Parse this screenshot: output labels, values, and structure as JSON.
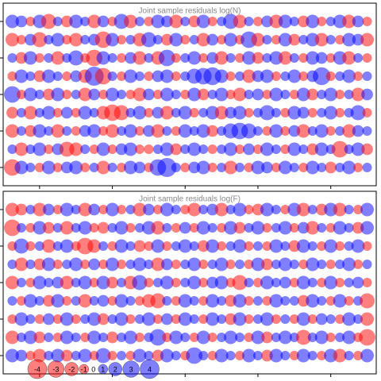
{
  "chart_data": [
    {
      "type": "bubble-grid",
      "title": "Joint sample residuals log(N)",
      "x": [
        1,
        2,
        3,
        4,
        5,
        6,
        7,
        8,
        9,
        10,
        11,
        12,
        13,
        14,
        15,
        16,
        17,
        18,
        19,
        20,
        21,
        22,
        23,
        24,
        25,
        26,
        27,
        28,
        29,
        30,
        31,
        32,
        33,
        34,
        35,
        36,
        37,
        38,
        39,
        40
      ],
      "y": [
        9,
        8,
        7,
        6,
        5,
        4,
        3,
        2,
        1
      ],
      "xlim": [
        0,
        41
      ],
      "ylim": [
        0,
        10
      ],
      "xticks": [
        4,
        12,
        20,
        28,
        36
      ],
      "yticks": [
        1,
        3,
        5,
        7,
        9
      ],
      "positive_color": "#0000ff",
      "negative_color": "#ff0000",
      "values": [
        [
          2,
          1.5,
          -1,
          2,
          -2.5,
          1,
          -1.5,
          2,
          1,
          -2,
          1.5,
          -1,
          2.5,
          -2,
          1,
          -1,
          2,
          1.5,
          -2,
          1,
          -1.5,
          2,
          -1,
          1,
          2.5,
          -2,
          1,
          -1,
          1.5,
          -2,
          2,
          1,
          -1.5,
          2,
          -1,
          1,
          2,
          -2,
          1.5,
          -1
        ],
        [
          -2,
          -1,
          1.5,
          -2.5,
          1,
          2,
          -1,
          -2,
          1,
          1.5,
          -3,
          2,
          -1,
          1,
          -2,
          2.5,
          1,
          -1.5,
          2,
          -1,
          1,
          -2,
          1.5,
          -1,
          2,
          -1,
          3,
          -2,
          1,
          -1,
          2,
          -1.5,
          1,
          2,
          -2,
          1,
          -1,
          2,
          1.5,
          -2
        ],
        [
          1,
          -1.5,
          2,
          -1,
          1,
          -2,
          1,
          2.5,
          -1,
          -3,
          2,
          1,
          -1,
          1.5,
          -2,
          1,
          -2,
          3,
          -1,
          1,
          2,
          -1,
          1.5,
          -2,
          1,
          -1,
          2,
          -1.5,
          1,
          2,
          -2,
          1,
          -1,
          2,
          1.5,
          -1,
          2,
          -2,
          1,
          -1
        ],
        [
          -1,
          2,
          1,
          -1.5,
          2,
          1,
          -1,
          1.5,
          -2,
          4,
          -3,
          1,
          -1,
          2,
          1,
          -1,
          1.5,
          2,
          -1,
          1,
          2.5,
          3,
          3.5,
          2,
          -1,
          1,
          -2,
          1.5,
          2,
          -1,
          1,
          2,
          -1,
          1.5,
          3.5,
          -1,
          1,
          2,
          -1,
          1
        ],
        [
          3,
          -1,
          2,
          1,
          -1.5,
          2,
          -1,
          1,
          -2,
          1.5,
          -1,
          2,
          1,
          -1,
          -2,
          1.5,
          -1,
          2,
          1,
          -1,
          2,
          -1.5,
          1,
          2,
          -1,
          -2,
          1,
          1.5,
          -1,
          2,
          1,
          -1,
          2,
          -1.5,
          1,
          2,
          -1,
          1,
          -2,
          1.5
        ],
        [
          -1.5,
          1,
          -2,
          1,
          2,
          -1,
          1.5,
          -1,
          2,
          1,
          -2,
          -3,
          -2.5,
          1,
          2,
          -1,
          1.5,
          -2,
          1,
          2,
          -1,
          1,
          2,
          -2,
          1.5,
          2,
          -1,
          1,
          2.5,
          1,
          -1,
          2,
          1.5,
          -1,
          1,
          2,
          -1,
          1,
          2.5,
          -1
        ],
        [
          -2,
          1,
          -1.5,
          2,
          1,
          -2,
          1,
          -1,
          1.5,
          2,
          -1,
          -2,
          1,
          2,
          -1,
          1.5,
          -2,
          1,
          -1,
          2,
          1,
          2,
          -1.5,
          1,
          2.5,
          3,
          2.5,
          1,
          -1,
          2,
          -1,
          1.5,
          -2,
          1,
          2,
          -1,
          1,
          -2,
          1.5,
          1
        ],
        [
          1,
          -2,
          1,
          2,
          -1,
          1.5,
          -2.5,
          -2,
          1,
          -1,
          2,
          -1,
          1.5,
          2,
          -1,
          -1,
          1,
          2,
          -1.5,
          1,
          2,
          1,
          -1,
          1,
          2,
          -1,
          1.5,
          -1,
          2,
          1,
          -1,
          2,
          1,
          -1.5,
          2,
          1,
          -3,
          1,
          2,
          -1.5
        ],
        [
          -3,
          2,
          1,
          -1,
          2,
          -1,
          1.5,
          2,
          -1,
          1,
          -2,
          1,
          -1,
          2,
          1.5,
          -1,
          3,
          4,
          1,
          -1,
          1.5,
          2,
          -1,
          1,
          -2,
          1,
          -1,
          2,
          1.5,
          -1,
          2,
          1,
          -1,
          2,
          1,
          -1.5,
          1,
          2,
          -1,
          1
        ]
      ]
    },
    {
      "type": "bubble-grid",
      "title": "Joint sample residuals log(F)",
      "x": [
        1,
        2,
        3,
        4,
        5,
        6,
        7,
        8,
        9,
        10,
        11,
        12,
        13,
        14,
        15,
        16,
        17,
        18,
        19,
        20,
        21,
        22,
        23,
        24,
        25,
        26,
        27,
        28,
        29,
        30,
        31,
        32,
        33,
        34,
        35,
        36,
        37,
        38,
        39,
        40
      ],
      "y": [
        9,
        8,
        7,
        6,
        5,
        4,
        3,
        2,
        1
      ],
      "xlim": [
        0,
        41
      ],
      "ylim": [
        0,
        10
      ],
      "xticks": [
        4,
        12,
        20,
        28,
        36
      ],
      "yticks": [
        1,
        3,
        5,
        7,
        9
      ],
      "positive_color": "#0000ff",
      "negative_color": "#ff0000",
      "legend": [
        -4,
        -3,
        -2,
        -1,
        0,
        1,
        2,
        3,
        4
      ],
      "values": [
        [
          -2,
          -1.5,
          1,
          -2,
          1.5,
          -1,
          2,
          1,
          -2,
          1.5,
          -1,
          2,
          -1,
          1,
          -2,
          1.5,
          -1,
          2,
          1,
          -1,
          -2,
          1,
          1.5,
          -2,
          1,
          2,
          -1,
          -1.5,
          2,
          1,
          -1,
          2,
          -2,
          1,
          -1.5,
          2,
          -2,
          1,
          -1,
          2
        ],
        [
          -3,
          1,
          -1,
          2,
          -1.5,
          1,
          -2,
          1,
          2,
          -1,
          -1.5,
          1,
          2,
          -1,
          1,
          2,
          -2,
          1,
          -1,
          1.5,
          -1,
          2,
          1,
          -1,
          2,
          -1.5,
          1,
          2,
          -1,
          1,
          2,
          -1,
          1.5,
          -2,
          1,
          -1,
          2,
          1,
          -1.5,
          2
        ],
        [
          -1,
          2.5,
          -1,
          1,
          -2,
          1,
          2,
          -1,
          -3,
          -2,
          1,
          -1,
          2,
          1,
          -1.5,
          -1,
          2,
          -1,
          1,
          2,
          1,
          -1.5,
          2,
          -1,
          1,
          2,
          -1,
          1,
          -1,
          2,
          1,
          -1.5,
          2,
          1,
          -1,
          2,
          -1,
          1,
          2,
          -1
        ],
        [
          1,
          -2,
          1,
          -1.5,
          2,
          -1,
          1,
          2,
          -1,
          1.5,
          -1,
          2,
          -1,
          1,
          2,
          1,
          -2,
          1.5,
          -1,
          1,
          2,
          -1,
          1,
          2,
          -1,
          1,
          -1,
          2,
          -1.5,
          1,
          2,
          1,
          -1,
          2,
          1,
          -1,
          1,
          2,
          -1,
          1
        ],
        [
          -2,
          1,
          -1,
          2,
          1,
          1.5,
          -2,
          1,
          2,
          -1,
          2,
          -1.5,
          1,
          -2,
          2.5,
          -1,
          1,
          2,
          -1,
          1,
          2,
          -1,
          1.5,
          2,
          -1,
          -2.5,
          1,
          -1,
          2,
          1,
          1.5,
          -1,
          2,
          1,
          -1,
          2,
          -1,
          1,
          1.5,
          -1
        ],
        [
          1,
          -1,
          2,
          1,
          -1.5,
          2,
          -1,
          1,
          -2,
          1,
          1.5,
          -1,
          2,
          1,
          -1,
          -2,
          -2.5,
          1,
          -1,
          2,
          1,
          -1,
          2,
          1,
          -1.5,
          2,
          -1,
          1,
          -1,
          2,
          1,
          1,
          -1.5,
          2,
          1,
          -1,
          2,
          -1,
          1,
          -2.5
        ],
        [
          -1,
          2,
          1,
          -1,
          1.5,
          -1,
          2,
          -1,
          1,
          2,
          -1.5,
          1,
          2,
          -1,
          1,
          2,
          -1,
          1.5,
          -1,
          2,
          1,
          -1,
          2,
          1,
          -1.5,
          2,
          -1,
          1,
          2,
          -1,
          1,
          -1,
          2,
          -1,
          1.5,
          1,
          -1,
          2,
          1,
          -2
        ],
        [
          -2,
          1,
          2,
          -1.5,
          1,
          -1,
          2,
          1,
          -1,
          2,
          1,
          -1.5,
          1,
          2,
          -1,
          1,
          3,
          -1,
          2,
          1,
          -1,
          2,
          -1,
          1,
          2,
          1,
          -1,
          2,
          -1.5,
          1,
          2,
          1,
          -2.5,
          1,
          2,
          -1,
          1,
          2,
          -1,
          -3
        ],
        [
          2,
          1.5,
          -1,
          -2,
          1,
          2,
          -1.5,
          1,
          2,
          -1,
          2.5,
          -1,
          1,
          -1,
          2,
          1,
          -1.5,
          2,
          1,
          -1,
          3,
          1,
          -1,
          2,
          1,
          -1,
          2,
          1,
          -1.5,
          2,
          1,
          -1,
          2,
          1,
          -1,
          2,
          -2,
          1,
          -1,
          2
        ]
      ]
    }
  ]
}
